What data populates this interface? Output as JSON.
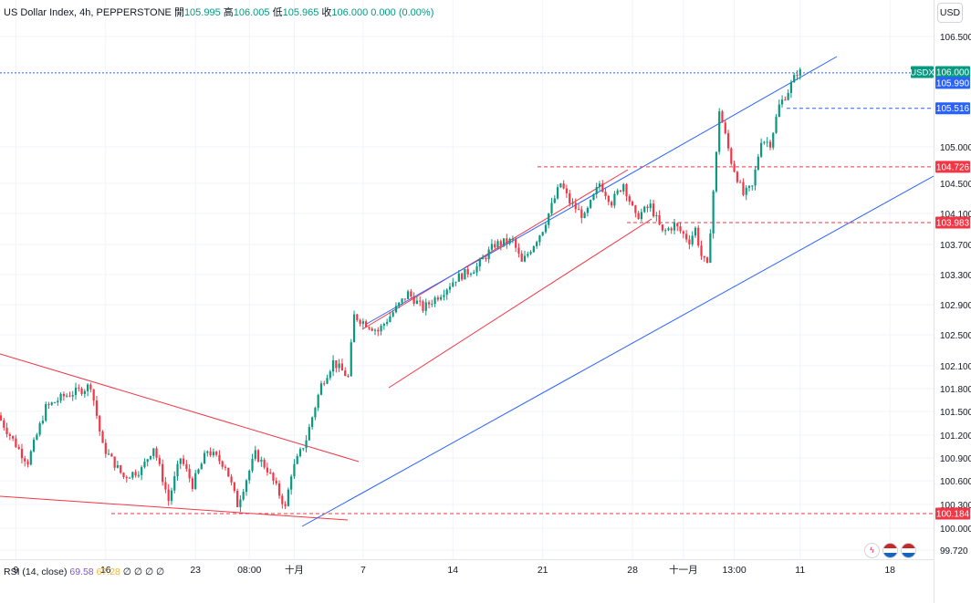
{
  "header": {
    "symbol": "US Dollar Index",
    "interval": "4h",
    "exchange": "PEPPERSTONE",
    "open_label": "開",
    "open": "105.995",
    "high_label": "高",
    "high": "106.005",
    "low_label": "低",
    "low": "105.965",
    "close_label": "收",
    "close": "106.000",
    "change": "0.000",
    "change_pct": "(0.00%)"
  },
  "currency_button": "USD",
  "rsi": {
    "label": "RSI (14, close)",
    "value1": "69.58",
    "value2": "67.28",
    "extras": [
      "∅",
      "∅",
      "∅",
      "∅"
    ]
  },
  "price_axis": {
    "ticks": [
      106.5,
      105.0,
      104.5,
      104.1,
      103.7,
      103.3,
      102.9,
      102.5,
      102.1,
      101.8,
      101.5,
      101.2,
      100.9,
      100.6,
      100.3,
      100.0,
      99.72
    ],
    "tick_labels": [
      "106.500",
      "105.000",
      "104.500",
      "104.100",
      "103.700",
      "103.300",
      "102.900",
      "102.500",
      "102.100",
      "101.800",
      "101.500",
      "101.200",
      "100.900",
      "100.600",
      "100.300",
      "100.000",
      "99.720"
    ]
  },
  "time_axis": {
    "labels": [
      {
        "text": "9",
        "bar": 5
      },
      {
        "text": "16",
        "bar": 35
      },
      {
        "text": "23",
        "bar": 65
      },
      {
        "text": "08:00",
        "bar": 83
      },
      {
        "text": "十月",
        "bar": 98
      },
      {
        "text": "7",
        "bar": 121
      },
      {
        "text": "14",
        "bar": 151
      },
      {
        "text": "21",
        "bar": 181
      },
      {
        "text": "28",
        "bar": 211
      },
      {
        "text": "十一月",
        "bar": 228
      },
      {
        "text": "13:00",
        "bar": 245
      },
      {
        "text": "11",
        "bar": 267
      },
      {
        "text": "18",
        "bar": 297
      }
    ]
  },
  "price_labels": [
    {
      "text": "106.000",
      "value": 106.0,
      "color": "#089981",
      "tag": "USDX"
    },
    {
      "text": "105.990",
      "value": 105.99,
      "color": "#2962ff"
    },
    {
      "text": "105.516",
      "value": 105.516,
      "color": "#2962ff"
    },
    {
      "text": "104.726",
      "value": 104.726,
      "color": "#f23645"
    },
    {
      "text": "103.983",
      "value": 103.983,
      "color": "#f23645"
    },
    {
      "text": "100.184",
      "value": 100.184,
      "color": "#f23645"
    }
  ],
  "colors": {
    "up": "#089981",
    "down": "#f23645",
    "blue_line": "#2962ff",
    "red_line": "#f23645",
    "grid": "#f0f3fa"
  },
  "chart_data": {
    "type": "candlestick",
    "title": "US Dollar Index, 4h, PEPPERSTONE",
    "ylim": [
      99.6,
      106.7
    ],
    "anchors": [
      [
        0,
        101.45
      ],
      [
        8,
        100.95
      ],
      [
        10,
        100.85
      ],
      [
        16,
        101.55
      ],
      [
        22,
        101.7
      ],
      [
        29,
        101.8
      ],
      [
        31,
        101.85
      ],
      [
        35,
        101.05
      ],
      [
        42,
        100.65
      ],
      [
        48,
        100.75
      ],
      [
        52,
        101.05
      ],
      [
        57,
        100.35
      ],
      [
        61,
        100.9
      ],
      [
        65,
        100.55
      ],
      [
        70,
        101.0
      ],
      [
        76,
        100.8
      ],
      [
        80,
        100.3
      ],
      [
        86,
        100.95
      ],
      [
        90,
        100.75
      ],
      [
        95,
        100.35
      ],
      [
        96,
        100.25
      ],
      [
        98,
        100.7
      ],
      [
        103,
        101.15
      ],
      [
        108,
        101.85
      ],
      [
        112,
        102.15
      ],
      [
        117,
        101.95
      ],
      [
        119,
        102.75
      ],
      [
        127,
        102.55
      ],
      [
        133,
        102.85
      ],
      [
        137,
        103.05
      ],
      [
        142,
        102.85
      ],
      [
        148,
        103.05
      ],
      [
        153,
        103.25
      ],
      [
        160,
        103.4
      ],
      [
        166,
        103.7
      ],
      [
        172,
        103.75
      ],
      [
        175,
        103.45
      ],
      [
        182,
        103.9
      ],
      [
        188,
        104.5
      ],
      [
        191,
        104.25
      ],
      [
        196,
        104.05
      ],
      [
        201,
        104.5
      ],
      [
        205,
        104.25
      ],
      [
        209,
        104.5
      ],
      [
        213,
        104.05
      ],
      [
        218,
        104.2
      ],
      [
        222,
        103.85
      ],
      [
        226,
        103.95
      ],
      [
        231,
        103.75
      ],
      [
        233,
        103.9
      ],
      [
        235,
        103.55
      ],
      [
        237,
        103.4
      ],
      [
        240,
        104.9
      ],
      [
        241,
        105.5
      ],
      [
        245,
        104.8
      ],
      [
        249,
        104.35
      ],
      [
        252,
        104.45
      ],
      [
        255,
        105.1
      ],
      [
        258,
        105.05
      ],
      [
        261,
        105.55
      ],
      [
        264,
        105.75
      ],
      [
        267,
        106.0
      ]
    ]
  }
}
